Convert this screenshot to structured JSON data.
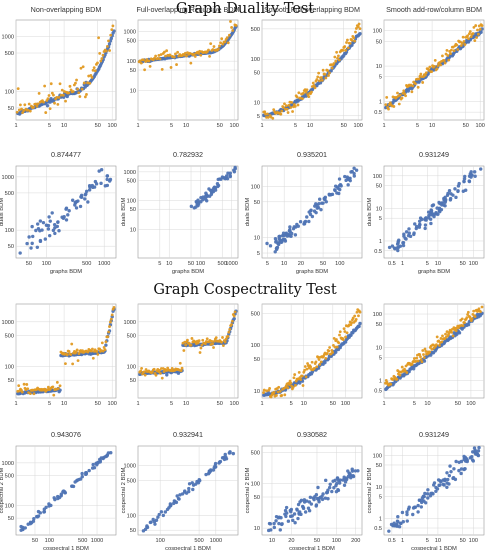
{
  "sections": [
    {
      "title": "Graph Duality Test"
    },
    {
      "title": "Graph Cospectrality Test"
    }
  ],
  "colors": {
    "blue": "#4f74b4",
    "orange": "#e29a22",
    "grid": "#d8d8d8",
    "frame": "#9a9a9a"
  },
  "chart_data": [
    {
      "type": "scatter",
      "title": "Non-overlapping BDM",
      "xscale": "log",
      "yscale": "log",
      "xlim": [
        1,
        120
      ],
      "ylim": [
        30,
        2000
      ],
      "xticks": [
        1,
        5,
        10,
        50,
        100
      ],
      "yticks": [
        50,
        100,
        500,
        1000
      ],
      "xlabel": "",
      "ylabel": "",
      "series": [
        {
          "kind": "sorted",
          "color": "blue",
          "low": 38,
          "high": 1300,
          "knee": 0.55,
          "spread": 0.05,
          "n": 110,
          "seed": 11
        },
        {
          "kind": "sorted",
          "color": "orange",
          "low": 42,
          "high": 1700,
          "knee": 0.55,
          "spread": 0.45,
          "n": 90,
          "seed": 12
        }
      ]
    },
    {
      "type": "scatter",
      "title": "Full-overlapping Recursive BDM",
      "xscale": "log",
      "yscale": "log",
      "xlim": [
        1,
        120
      ],
      "ylim": [
        1,
        2500
      ],
      "xticks": [
        1,
        5,
        10,
        50,
        100
      ],
      "yticks": [
        10,
        50,
        100,
        500,
        1000
      ],
      "xlabel": "",
      "ylabel": "",
      "series": [
        {
          "kind": "sorted",
          "color": "blue",
          "low": 95,
          "high": 1500,
          "knee": 0.7,
          "spread": 0.03,
          "n": 110,
          "seed": 21
        },
        {
          "kind": "sorted",
          "color": "orange",
          "low": 100,
          "high": 1900,
          "knee": 0.7,
          "spread": 0.35,
          "n": 90,
          "seed": 22
        }
      ]
    },
    {
      "type": "scatter",
      "title": "Smooth Full-overlapping BDM",
      "xscale": "log",
      "yscale": "log",
      "xlim": [
        1,
        120
      ],
      "ylim": [
        4,
        800
      ],
      "xticks": [
        1,
        5,
        10,
        50,
        100
      ],
      "yticks": [
        5,
        10,
        50,
        100,
        500
      ],
      "xlabel": "",
      "ylabel": "",
      "series": [
        {
          "kind": "curve",
          "color": "blue",
          "low": 5,
          "high": 400,
          "n": 110,
          "spread": 0.08,
          "seed": 31
        },
        {
          "kind": "curve",
          "color": "orange",
          "low": 5,
          "high": 600,
          "n": 110,
          "spread": 0.4,
          "seed": 32
        }
      ]
    },
    {
      "type": "scatter",
      "title": "Smooth add-row/column BDM",
      "xscale": "log",
      "yscale": "log",
      "xlim": [
        1,
        120
      ],
      "ylim": [
        0.3,
        200
      ],
      "xticks": [
        1,
        5,
        10,
        50,
        100
      ],
      "yticks": [
        0.5,
        1,
        5,
        10,
        50,
        100
      ],
      "xlabel": "",
      "ylabel": "",
      "series": [
        {
          "kind": "line",
          "color": "blue",
          "low": 0.6,
          "high": 100,
          "n": 110,
          "spread": 0.15,
          "seed": 41
        },
        {
          "kind": "line",
          "color": "orange",
          "low": 0.6,
          "high": 140,
          "n": 110,
          "spread": 0.55,
          "seed": 42
        }
      ]
    },
    {
      "type": "scatter",
      "title": "0.874477",
      "xscale": "log",
      "yscale": "log",
      "xlim": [
        30,
        1600
      ],
      "ylim": [
        30,
        1600
      ],
      "xticks": [
        50,
        100,
        500,
        1000
      ],
      "yticks": [
        50,
        100,
        500,
        1000
      ],
      "xlabel": "graphs BDM",
      "ylabel": "duals BDM",
      "series": [
        {
          "kind": "diag",
          "color": "blue",
          "low": 40,
          "high": 1300,
          "n": 75,
          "spread": 0.45,
          "seed": 51
        }
      ]
    },
    {
      "type": "scatter",
      "title": "0.782932",
      "xscale": "log",
      "yscale": "log",
      "xlim": [
        1,
        1600
      ],
      "ylim": [
        1,
        1600
      ],
      "xticks": [
        5,
        10,
        50,
        100,
        500,
        1000
      ],
      "yticks": [
        10,
        50,
        100,
        500,
        1000
      ],
      "xlabel": "graphs BDM",
      "ylabel": "duals BDM",
      "series": [
        {
          "kind": "diag",
          "color": "blue",
          "low": 60,
          "high": 1300,
          "n": 60,
          "spread": 0.35,
          "seed": 61
        }
      ]
    },
    {
      "type": "scatter",
      "title": "0.935201",
      "xscale": "log",
      "yscale": "log",
      "xlim": [
        4,
        250
      ],
      "ylim": [
        4,
        250
      ],
      "xticks": [
        5,
        10,
        20,
        50,
        100
      ],
      "yticks": [
        5,
        10,
        50,
        100
      ],
      "xlabel": "graphs BDM",
      "ylabel": "duals BDM",
      "series": [
        {
          "kind": "diag",
          "color": "blue",
          "low": 6,
          "high": 200,
          "n": 110,
          "spread": 0.25,
          "seed": 71
        }
      ]
    },
    {
      "type": "scatter",
      "title": "0.931249",
      "xscale": "log",
      "yscale": "log",
      "xlim": [
        0.3,
        200
      ],
      "ylim": [
        0.3,
        200
      ],
      "xticks": [
        0.5,
        1,
        5,
        10,
        50,
        100
      ],
      "yticks": [
        0.5,
        1,
        5,
        10,
        50,
        100
      ],
      "xlabel": "graphs BDM",
      "ylabel": "duals BDM",
      "series": [
        {
          "kind": "diag",
          "color": "blue",
          "low": 0.5,
          "high": 150,
          "n": 110,
          "spread": 0.45,
          "seed": 81
        }
      ]
    },
    {
      "type": "scatter",
      "title": "",
      "xscale": "log",
      "yscale": "log",
      "xlim": [
        1,
        120
      ],
      "ylim": [
        20,
        2500
      ],
      "xticks": [
        1,
        5,
        10,
        50,
        100
      ],
      "yticks": [
        50,
        100,
        500,
        1000
      ],
      "xlabel": "",
      "ylabel": "",
      "series": [
        {
          "kind": "stairs",
          "color": "blue",
          "low": 25,
          "high": 2000,
          "n": 110,
          "spread": 0.05,
          "seed": 91
        },
        {
          "kind": "stairs",
          "color": "orange",
          "low": 28,
          "high": 2200,
          "n": 110,
          "spread": 0.25,
          "seed": 92
        }
      ]
    },
    {
      "type": "scatter",
      "title": "",
      "xscale": "log",
      "yscale": "log",
      "xlim": [
        1,
        120
      ],
      "ylim": [
        20,
        2500
      ],
      "xticks": [
        1,
        5,
        10,
        50,
        100
      ],
      "yticks": [
        50,
        100,
        500,
        1000
      ],
      "xlabel": "",
      "ylabel": "",
      "series": [
        {
          "kind": "stairs",
          "color": "blue",
          "low": 70,
          "high": 1800,
          "n": 110,
          "spread": 0.05,
          "seed": 101
        },
        {
          "kind": "stairs",
          "color": "orange",
          "low": 75,
          "high": 2100,
          "n": 110,
          "spread": 0.25,
          "seed": 102
        }
      ]
    },
    {
      "type": "scatter",
      "title": "",
      "xscale": "log",
      "yscale": "log",
      "xlim": [
        1,
        250
      ],
      "ylim": [
        7,
        800
      ],
      "xticks": [
        1,
        5,
        10,
        50,
        100
      ],
      "yticks": [
        10,
        50,
        100,
        500
      ],
      "xlabel": "",
      "ylabel": "",
      "series": [
        {
          "kind": "curve",
          "color": "blue",
          "low": 8,
          "high": 300,
          "n": 110,
          "spread": 0.1,
          "seed": 111
        },
        {
          "kind": "curve",
          "color": "orange",
          "low": 8,
          "high": 600,
          "n": 130,
          "spread": 0.45,
          "seed": 112
        }
      ]
    },
    {
      "type": "scatter",
      "title": "",
      "xscale": "log",
      "yscale": "log",
      "xlim": [
        1,
        200
      ],
      "ylim": [
        0.3,
        200
      ],
      "xticks": [
        1,
        5,
        10,
        50,
        100
      ],
      "yticks": [
        0.5,
        1,
        5,
        10,
        50,
        100
      ],
      "xlabel": "",
      "ylabel": "",
      "series": [
        {
          "kind": "line",
          "color": "blue",
          "low": 0.5,
          "high": 110,
          "n": 110,
          "spread": 0.15,
          "seed": 121
        },
        {
          "kind": "line",
          "color": "orange",
          "low": 0.7,
          "high": 150,
          "n": 130,
          "spread": 0.5,
          "seed": 122
        }
      ]
    },
    {
      "type": "scatter",
      "title": "0.943076",
      "xscale": "log",
      "yscale": "log",
      "xlim": [
        20,
        2500
      ],
      "ylim": [
        20,
        2500
      ],
      "xticks": [
        50,
        100,
        500,
        1000
      ],
      "yticks": [
        50,
        100,
        500,
        1000
      ],
      "xlabel": "cospectral 1 BDM",
      "ylabel": "cospectral 2 BDM",
      "series": [
        {
          "kind": "diag",
          "color": "blue",
          "low": 25,
          "high": 2000,
          "n": 70,
          "spread": 0.12,
          "seed": 131
        }
      ]
    },
    {
      "type": "scatter",
      "title": "0.932941",
      "xscale": "log",
      "yscale": "log",
      "xlim": [
        40,
        2500
      ],
      "ylim": [
        40,
        2500
      ],
      "xticks": [
        100,
        500,
        1000
      ],
      "yticks": [
        50,
        100,
        500,
        1000
      ],
      "xlabel": "cospectral 1 BDM",
      "ylabel": "cospectral 2 BDM",
      "series": [
        {
          "kind": "diag",
          "color": "blue",
          "low": 50,
          "high": 1900,
          "n": 70,
          "spread": 0.15,
          "seed": 141
        }
      ]
    },
    {
      "type": "scatter",
      "title": "0.930582",
      "xscale": "log",
      "yscale": "log",
      "xlim": [
        7,
        250
      ],
      "ylim": [
        7,
        700
      ],
      "xticks": [
        10,
        20,
        50,
        100,
        200
      ],
      "yticks": [
        10,
        50,
        100,
        500
      ],
      "xlabel": "cospectral 1 BDM",
      "ylabel": "cospectral 2 BDM",
      "series": [
        {
          "kind": "diag",
          "color": "blue",
          "low": 9,
          "high": 200,
          "n": 110,
          "spread": 0.35,
          "seed": 151
        }
      ]
    },
    {
      "type": "scatter",
      "title": "0.931249",
      "xscale": "log",
      "yscale": "log",
      "xlim": [
        0.3,
        200
      ],
      "ylim": [
        0.3,
        200
      ],
      "xticks": [
        0.5,
        1,
        5,
        10,
        50,
        100
      ],
      "yticks": [
        0.5,
        1,
        5,
        10,
        50,
        100
      ],
      "xlabel": "cospectral 1 BDM",
      "ylabel": "cospectral 2 BDM",
      "series": [
        {
          "kind": "diag",
          "color": "blue",
          "low": 0.5,
          "high": 150,
          "n": 110,
          "spread": 0.45,
          "seed": 161
        }
      ]
    }
  ]
}
